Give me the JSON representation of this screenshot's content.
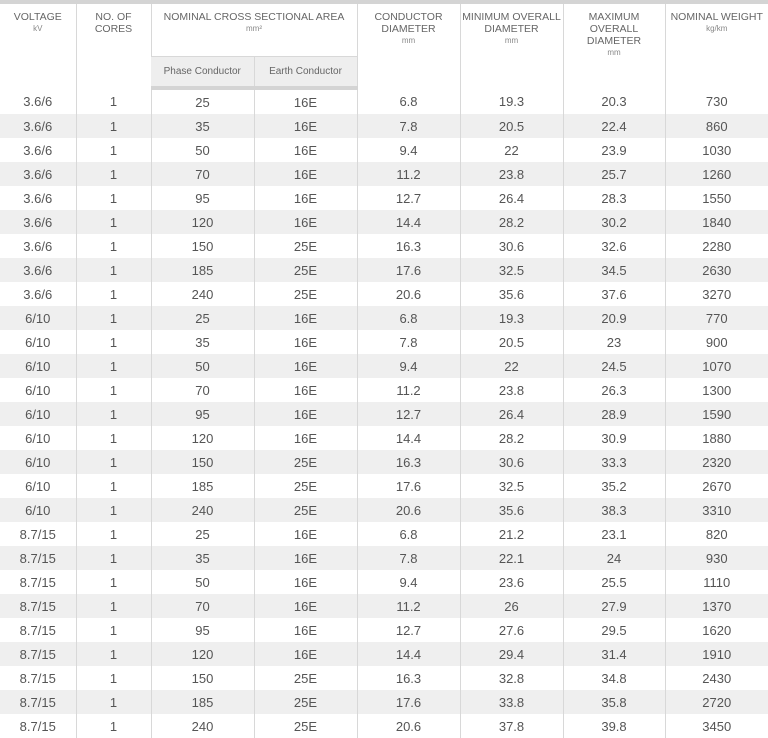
{
  "headers": {
    "voltage": {
      "label": "VOLTAGE",
      "unit": "kV"
    },
    "cores": {
      "label": "NO. OF CORES"
    },
    "area": {
      "label": "NOMINAL CROSS SECTIONAL AREA",
      "unit": "mm²",
      "phase": "Phase Conductor",
      "earth": "Earth Conductor"
    },
    "cond_dia": {
      "label": "CONDUCTOR DIAMETER",
      "unit": "mm"
    },
    "min_dia": {
      "label": "MINIMUM OVERALL DIAMETER",
      "unit": "mm"
    },
    "max_dia": {
      "label": "MAXIMUM OVERALL DIAMETER",
      "unit": "mm"
    },
    "weight": {
      "label": "NOMINAL WEIGHT",
      "unit": "kg/km"
    }
  },
  "rows": [
    [
      "3.6/6",
      "1",
      "25",
      "16E",
      "6.8",
      "19.3",
      "20.3",
      "730"
    ],
    [
      "3.6/6",
      "1",
      "35",
      "16E",
      "7.8",
      "20.5",
      "22.4",
      "860"
    ],
    [
      "3.6/6",
      "1",
      "50",
      "16E",
      "9.4",
      "22",
      "23.9",
      "1030"
    ],
    [
      "3.6/6",
      "1",
      "70",
      "16E",
      "11.2",
      "23.8",
      "25.7",
      "1260"
    ],
    [
      "3.6/6",
      "1",
      "95",
      "16E",
      "12.7",
      "26.4",
      "28.3",
      "1550"
    ],
    [
      "3.6/6",
      "1",
      "120",
      "16E",
      "14.4",
      "28.2",
      "30.2",
      "1840"
    ],
    [
      "3.6/6",
      "1",
      "150",
      "25E",
      "16.3",
      "30.6",
      "32.6",
      "2280"
    ],
    [
      "3.6/6",
      "1",
      "185",
      "25E",
      "17.6",
      "32.5",
      "34.5",
      "2630"
    ],
    [
      "3.6/6",
      "1",
      "240",
      "25E",
      "20.6",
      "35.6",
      "37.6",
      "3270"
    ],
    [
      "6/10",
      "1",
      "25",
      "16E",
      "6.8",
      "19.3",
      "20.9",
      "770"
    ],
    [
      "6/10",
      "1",
      "35",
      "16E",
      "7.8",
      "20.5",
      "23",
      "900"
    ],
    [
      "6/10",
      "1",
      "50",
      "16E",
      "9.4",
      "22",
      "24.5",
      "1070"
    ],
    [
      "6/10",
      "1",
      "70",
      "16E",
      "11.2",
      "23.8",
      "26.3",
      "1300"
    ],
    [
      "6/10",
      "1",
      "95",
      "16E",
      "12.7",
      "26.4",
      "28.9",
      "1590"
    ],
    [
      "6/10",
      "1",
      "120",
      "16E",
      "14.4",
      "28.2",
      "30.9",
      "1880"
    ],
    [
      "6/10",
      "1",
      "150",
      "25E",
      "16.3",
      "30.6",
      "33.3",
      "2320"
    ],
    [
      "6/10",
      "1",
      "185",
      "25E",
      "17.6",
      "32.5",
      "35.2",
      "2670"
    ],
    [
      "6/10",
      "1",
      "240",
      "25E",
      "20.6",
      "35.6",
      "38.3",
      "3310"
    ],
    [
      "8.7/15",
      "1",
      "25",
      "16E",
      "6.8",
      "21.2",
      "23.1",
      "820"
    ],
    [
      "8.7/15",
      "1",
      "35",
      "16E",
      "7.8",
      "22.1",
      "24",
      "930"
    ],
    [
      "8.7/15",
      "1",
      "50",
      "16E",
      "9.4",
      "23.6",
      "25.5",
      "1110"
    ],
    [
      "8.7/15",
      "1",
      "70",
      "16E",
      "11.2",
      "26",
      "27.9",
      "1370"
    ],
    [
      "8.7/15",
      "1",
      "95",
      "16E",
      "12.7",
      "27.6",
      "29.5",
      "1620"
    ],
    [
      "8.7/15",
      "1",
      "120",
      "16E",
      "14.4",
      "29.4",
      "31.4",
      "1910"
    ],
    [
      "8.7/15",
      "1",
      "150",
      "25E",
      "16.3",
      "32.8",
      "34.8",
      "2430"
    ],
    [
      "8.7/15",
      "1",
      "185",
      "25E",
      "17.6",
      "33.8",
      "35.8",
      "2720"
    ],
    [
      "8.7/15",
      "1",
      "240",
      "25E",
      "20.6",
      "37.8",
      "39.8",
      "3450"
    ]
  ]
}
